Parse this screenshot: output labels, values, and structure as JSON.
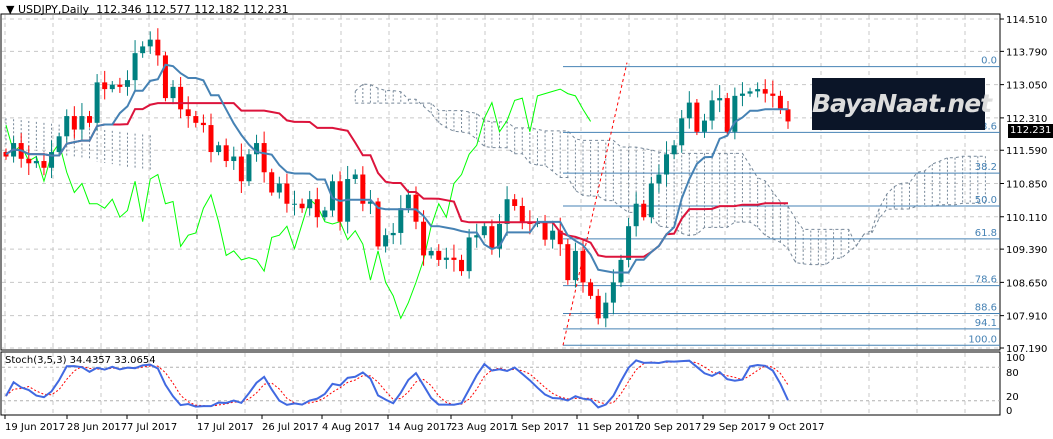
{
  "header": {
    "symbol": "USDJPY,Daily",
    "open": "112.346",
    "high": "112.577",
    "low": "112.182",
    "close": "112.231"
  },
  "price_tag": "112.231",
  "logo_text": "BayaNaat.net",
  "stochastic": {
    "label": "Stoch(3,5,3)",
    "main": "34.4357",
    "signal": "33.0654",
    "levels": [
      "100",
      "80",
      "20",
      "0"
    ]
  },
  "colors": {
    "bull": "#008080",
    "bear": "#ff0000",
    "tenkan": "#4682b4",
    "kijun": "#dc143c",
    "chikou": "#00ff00",
    "fib": "#4682b4",
    "stoch_main": "#4169e1",
    "stoch_signal": "#ff0000"
  },
  "chart_data": {
    "type": "candlestick",
    "price_axis": [
      "114.510",
      "113.790",
      "113.050",
      "112.310",
      "111.590",
      "110.850",
      "110.110",
      "109.390",
      "108.650",
      "107.910",
      "107.190"
    ],
    "ylim": [
      107.19,
      114.51
    ],
    "date_labels": [
      "19 Jun 2017",
      "28 Jun 2017",
      "7 Jul 2017",
      "17 Jul 2017",
      "26 Jul 2017",
      "4 Aug 2017",
      "14 Aug 2017",
      "23 Aug 2017",
      "1 Sep 2017",
      "11 Sep 2017",
      "20 Sep 2017",
      "29 Sep 2017",
      "9 Oct 2017"
    ],
    "close": [
      111.45,
      111.75,
      111.4,
      111.3,
      111.35,
      111.2,
      111.55,
      111.9,
      112.35,
      112.05,
      112.35,
      112.2,
      113.1,
      112.95,
      113.05,
      113.0,
      113.15,
      113.75,
      113.9,
      114.05,
      113.7,
      112.75,
      113.0,
      112.5,
      112.35,
      112.2,
      112.15,
      111.55,
      111.7,
      111.35,
      111.45,
      110.9,
      111.5,
      111.75,
      111.1,
      110.65,
      110.85,
      110.4,
      110.4,
      110.3,
      110.5,
      110.1,
      110.25,
      110.9,
      110.0,
      110.95,
      111.05,
      110.4,
      110.45,
      109.45,
      109.7,
      109.75,
      110.3,
      110.6,
      110.0,
      109.25,
      109.35,
      109.15,
      109.2,
      109.15,
      108.9,
      109.65,
      109.7,
      109.9,
      109.4,
      109.95,
      110.5,
      110.35,
      110.0,
      109.95,
      110.0,
      109.6,
      109.8,
      109.5,
      108.7,
      109.35,
      108.65,
      108.35,
      107.85,
      108.2,
      108.65,
      109.15,
      109.9,
      110.4,
      110.1,
      110.85,
      111.05,
      111.5,
      111.7,
      112.3,
      112.65,
      112.0,
      112.25,
      112.7,
      112.75,
      112.0,
      112.8,
      112.85,
      112.9,
      112.95,
      112.85,
      112.8,
      112.5,
      112.231
    ],
    "fibonacci": {
      "high": 113.45,
      "low": 107.25,
      "levels": [
        {
          "label": "0.0",
          "ratio": 0.0
        },
        {
          "label": "23.6",
          "ratio": 0.236
        },
        {
          "label": "38.2",
          "ratio": 0.382
        },
        {
          "label": "50.0",
          "ratio": 0.5
        },
        {
          "label": "61.8",
          "ratio": 0.618
        },
        {
          "label": "78.6",
          "ratio": 0.786
        },
        {
          "label": "88.6",
          "ratio": 0.886
        },
        {
          "label": "94.1",
          "ratio": 0.941
        },
        {
          "label": "100.0",
          "ratio": 1.0
        }
      ]
    },
    "indicators": [
      "Ichimoku",
      "Stochastic(3,5,3)",
      "Fibonacci retracement"
    ]
  }
}
